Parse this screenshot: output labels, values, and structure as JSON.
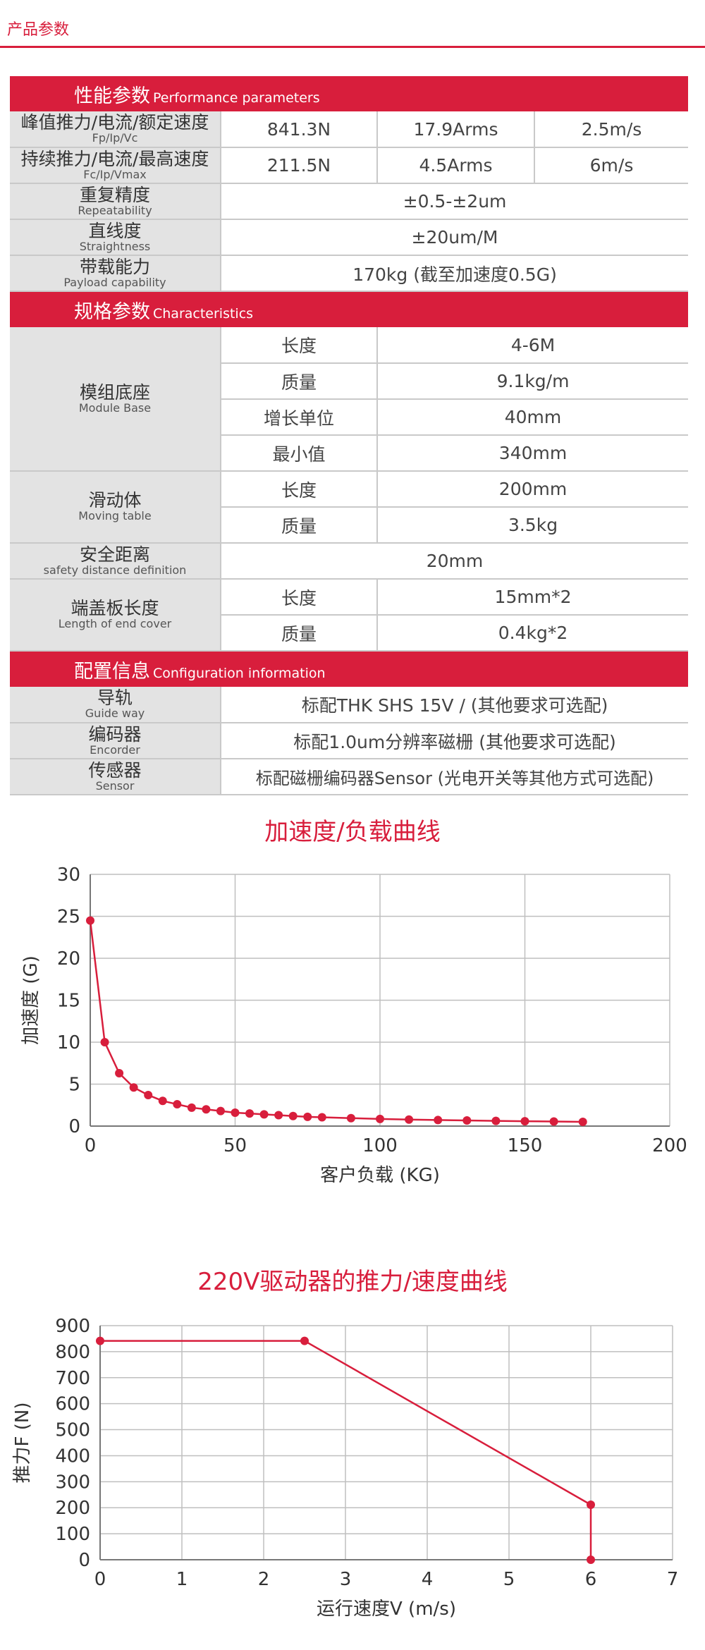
{
  "header": {
    "title": "产品参数"
  },
  "performance": {
    "title_cn": "性能参数",
    "title_en": "Performance parameters",
    "rows": [
      {
        "cn": "峰值推力/电流/额定速度",
        "en": "Fp/Ip/Vc",
        "v1": "841.3N",
        "v2": "17.9Arms",
        "v3": "2.5m/s"
      },
      {
        "cn": "持续推力/电流/最高速度",
        "en": "Fc/Ip/Vmax",
        "v1": "211.5N",
        "v2": "4.5Arms",
        "v3": "6m/s"
      },
      {
        "cn": "重复精度",
        "en": "Repeatability",
        "v": "±0.5-±2um"
      },
      {
        "cn": "直线度",
        "en": "Straightness",
        "v": "±20um/M"
      },
      {
        "cn": "带载能力",
        "en": "Payload capability",
        "v": "170kg (截至加速度0.5G)"
      }
    ]
  },
  "characteristics": {
    "title_cn": "规格参数",
    "title_en": "Characteristics",
    "base": {
      "cn": "模组底座",
      "en": "Module Base",
      "rows": [
        {
          "k": "长度",
          "v": "4-6M"
        },
        {
          "k": "质量",
          "v": "9.1kg/m"
        },
        {
          "k": "增长单位",
          "v": "40mm"
        },
        {
          "k": "最小值",
          "v": "340mm"
        }
      ]
    },
    "table": {
      "cn": "滑动体",
      "en": "Moving table",
      "rows": [
        {
          "k": "长度",
          "v": "200mm"
        },
        {
          "k": "质量",
          "v": "3.5kg"
        }
      ]
    },
    "safety": {
      "cn": "安全距离",
      "en": "safety distance definition",
      "v": "20mm"
    },
    "cover": {
      "cn": "端盖板长度",
      "en": "Length of end cover",
      "rows": [
        {
          "k": "长度",
          "v": "15mm*2"
        },
        {
          "k": "质量",
          "v": "0.4kg*2"
        }
      ]
    }
  },
  "configuration": {
    "title_cn": "配置信息",
    "title_en": "Configuration information",
    "rows": [
      {
        "cn": "导轨",
        "en": "Guide way",
        "v": "标配THK SHS 15V / (其他要求可选配)"
      },
      {
        "cn": "编码器",
        "en": "Encorder",
        "v": "标配1.0um分辨率磁栅 (其他要求可选配)"
      },
      {
        "cn": "传感器",
        "en": "Sensor",
        "v": "标配磁栅编码器Sensor (光电开关等其他方式可选配)"
      }
    ]
  },
  "colors": {
    "accent": "#d81e3c",
    "label_bg": "#e3e3e3",
    "grid": "#bfbfbf"
  },
  "chart_data": [
    {
      "type": "line",
      "title": "加速度/负载曲线",
      "xlabel": "客户负载 (KG)",
      "ylabel": "加速度 (G)",
      "xlim": [
        0,
        200
      ],
      "ylim": [
        0,
        30
      ],
      "xticks": [
        0,
        50,
        100,
        150,
        200
      ],
      "yticks": [
        0,
        5,
        10,
        15,
        20,
        25,
        30
      ],
      "grid": true,
      "x": [
        0,
        5,
        10,
        15,
        20,
        25,
        30,
        35,
        40,
        45,
        50,
        55,
        60,
        65,
        70,
        75,
        80,
        90,
        100,
        110,
        120,
        130,
        140,
        150,
        160,
        170
      ],
      "y": [
        24.5,
        10,
        6.3,
        4.6,
        3.7,
        3.0,
        2.6,
        2.2,
        2.0,
        1.8,
        1.6,
        1.5,
        1.4,
        1.3,
        1.2,
        1.1,
        1.05,
        0.95,
        0.85,
        0.78,
        0.72,
        0.67,
        0.62,
        0.58,
        0.55,
        0.5
      ]
    },
    {
      "type": "line",
      "title": "220V驱动器的推力/速度曲线",
      "xlabel": "运行速度V (m/s)",
      "ylabel": "推力F (N)",
      "xlim": [
        0,
        7
      ],
      "ylim": [
        0,
        900
      ],
      "xticks": [
        0,
        1,
        2,
        3,
        4,
        5,
        6,
        7
      ],
      "yticks": [
        0,
        100,
        200,
        300,
        400,
        500,
        600,
        700,
        800,
        900
      ],
      "grid": true,
      "x": [
        0,
        2.5,
        6,
        6
      ],
      "y": [
        841.3,
        841.3,
        211.5,
        0
      ]
    }
  ]
}
